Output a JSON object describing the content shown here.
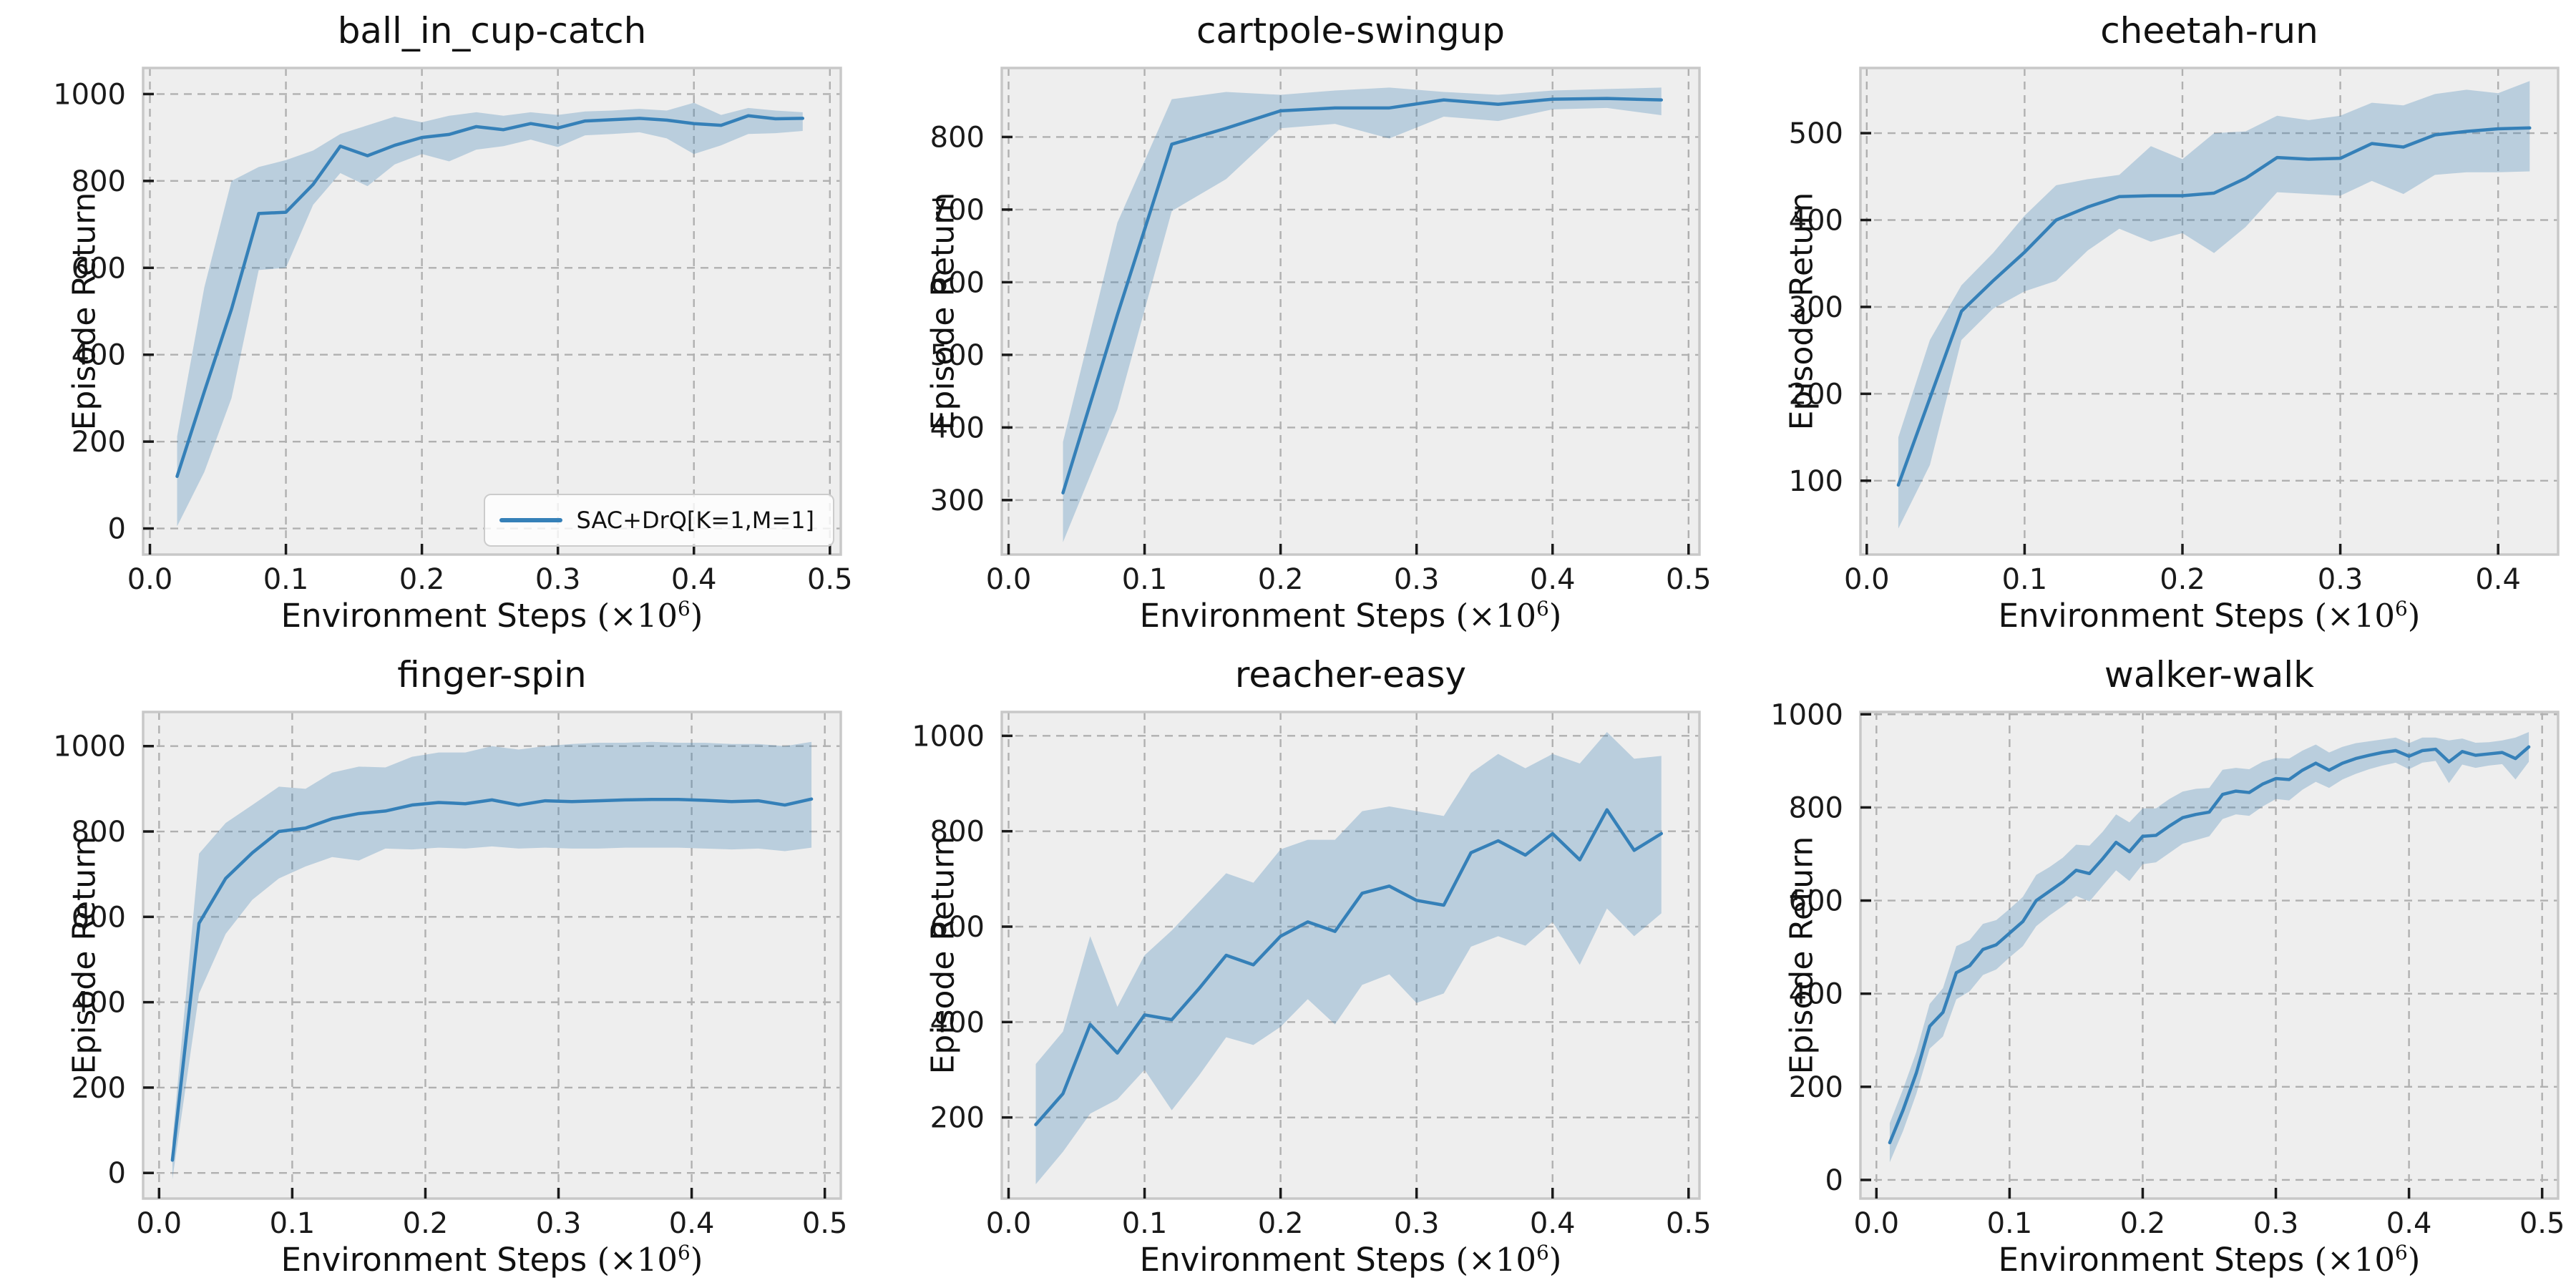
{
  "figure": {
    "background": "#ffffff",
    "axes_background": "#eeeeee",
    "grid_color": "#b0b0b0",
    "spine_color": "#c8c8c8",
    "tick_color": "#1a1a1a",
    "line_color": "#3580b8",
    "band_color": "rgba(53,126,180,0.28)",
    "xlabel": {
      "pre": "Environment Steps ",
      "open": "(",
      "times": "×10",
      "exp": "6",
      "close": ")"
    }
  },
  "legend": {
    "label": "SAC+DrQ[K=1,M=1]"
  },
  "chart_data": [
    {
      "type": "line",
      "title": "ball_in_cup-catch",
      "xlabel": "Environment Steps (×10⁶)",
      "ylabel": "Episode Return",
      "legend_visible": true,
      "grid": true,
      "xlim": [
        -0.005,
        0.508
      ],
      "ylim": [
        -60,
        1060
      ],
      "xticks": [
        0,
        0.1,
        0.2,
        0.3,
        0.4,
        0.5
      ],
      "xtick_labels": [
        "0.0",
        "0.1",
        "0.2",
        "0.3",
        "0.4",
        "0.5"
      ],
      "yticks": [
        0,
        200,
        400,
        600,
        800,
        1000
      ],
      "ytick_labels": [
        "0",
        "200",
        "400",
        "600",
        "800",
        "1000"
      ],
      "series": [
        {
          "name": "SAC+DrQ[K=1,M=1]",
          "x": [
            0.02,
            0.04,
            0.06,
            0.08,
            0.1,
            0.12,
            0.14,
            0.16,
            0.18,
            0.2,
            0.22,
            0.24,
            0.26,
            0.28,
            0.3,
            0.32,
            0.34,
            0.36,
            0.38,
            0.4,
            0.42,
            0.44,
            0.46,
            0.48
          ],
          "mean": [
            120,
            315,
            505,
            725,
            728,
            792,
            880,
            858,
            882,
            900,
            907,
            925,
            918,
            932,
            922,
            938,
            941,
            944,
            940,
            932,
            928,
            950,
            943,
            944
          ],
          "band_low": [
            5,
            130,
            300,
            595,
            600,
            745,
            818,
            788,
            838,
            862,
            845,
            872,
            880,
            895,
            878,
            905,
            908,
            912,
            898,
            862,
            882,
            908,
            910,
            915
          ],
          "band_high": [
            212,
            555,
            800,
            832,
            848,
            870,
            908,
            928,
            948,
            935,
            950,
            958,
            950,
            958,
            952,
            960,
            962,
            966,
            962,
            980,
            952,
            968,
            962,
            958
          ]
        }
      ]
    },
    {
      "type": "line",
      "title": "cartpole-swingup",
      "xlabel": "Environment Steps (×10⁶)",
      "ylabel": "Episode Return",
      "legend_visible": false,
      "grid": true,
      "xlim": [
        -0.005,
        0.508
      ],
      "ylim": [
        225,
        895
      ],
      "xticks": [
        0,
        0.1,
        0.2,
        0.3,
        0.4,
        0.5
      ],
      "xtick_labels": [
        "0.0",
        "0.1",
        "0.2",
        "0.3",
        "0.4",
        "0.5"
      ],
      "yticks": [
        300,
        400,
        500,
        600,
        700,
        800
      ],
      "ytick_labels": [
        "300",
        "400",
        "500",
        "600",
        "700",
        "800"
      ],
      "series": [
        {
          "name": "SAC+DrQ[K=1,M=1]",
          "x": [
            0.04,
            0.08,
            0.12,
            0.16,
            0.2,
            0.24,
            0.28,
            0.32,
            0.36,
            0.4,
            0.44,
            0.48
          ],
          "mean": [
            310,
            555,
            790,
            812,
            836,
            840,
            840,
            851,
            845,
            852,
            853,
            851
          ],
          "band_low": [
            242,
            425,
            698,
            742,
            812,
            818,
            798,
            828,
            822,
            838,
            840,
            830
          ],
          "band_high": [
            380,
            682,
            852,
            862,
            858,
            864,
            868,
            862,
            858,
            864,
            866,
            868
          ]
        }
      ]
    },
    {
      "type": "line",
      "title": "cheetah-run",
      "xlabel": "Environment Steps (×10⁶)",
      "ylabel": "Episode Return",
      "legend_visible": false,
      "grid": true,
      "xlim": [
        -0.004,
        0.438
      ],
      "ylim": [
        15,
        575
      ],
      "xticks": [
        0,
        0.1,
        0.2,
        0.3,
        0.4
      ],
      "xtick_labels": [
        "0.0",
        "0.1",
        "0.2",
        "0.3",
        "0.4"
      ],
      "yticks": [
        100,
        200,
        300,
        400,
        500
      ],
      "ytick_labels": [
        "100",
        "200",
        "300",
        "400",
        "500"
      ],
      "series": [
        {
          "name": "SAC+DrQ[K=1,M=1]",
          "x": [
            0.02,
            0.04,
            0.06,
            0.08,
            0.1,
            0.12,
            0.14,
            0.16,
            0.18,
            0.2,
            0.22,
            0.24,
            0.26,
            0.28,
            0.3,
            0.32,
            0.34,
            0.36,
            0.38,
            0.4,
            0.42
          ],
          "mean": [
            95,
            195,
            295,
            330,
            363,
            400,
            415,
            427,
            428,
            428,
            431,
            448,
            472,
            470,
            471,
            488,
            484,
            498,
            502,
            505,
            506
          ],
          "band_low": [
            45,
            118,
            262,
            298,
            318,
            330,
            365,
            390,
            375,
            385,
            362,
            392,
            432,
            430,
            428,
            445,
            430,
            452,
            455,
            455,
            456
          ],
          "band_high": [
            150,
            262,
            325,
            362,
            405,
            440,
            447,
            452,
            485,
            470,
            500,
            502,
            520,
            515,
            520,
            535,
            532,
            545,
            550,
            546,
            560
          ]
        }
      ]
    },
    {
      "type": "line",
      "title": "finger-spin",
      "xlabel": "Environment Steps (×10⁶)",
      "ylabel": "Episode Return",
      "legend_visible": false,
      "grid": true,
      "xlim": [
        -0.012,
        0.512
      ],
      "ylim": [
        -60,
        1080
      ],
      "xticks": [
        0,
        0.1,
        0.2,
        0.3,
        0.4,
        0.5
      ],
      "xtick_labels": [
        "0.0",
        "0.1",
        "0.2",
        "0.3",
        "0.4",
        "0.5"
      ],
      "yticks": [
        0,
        200,
        400,
        600,
        800,
        1000
      ],
      "ytick_labels": [
        "0",
        "200",
        "400",
        "600",
        "800",
        "1000"
      ],
      "series": [
        {
          "name": "SAC+DrQ[K=1,M=1]",
          "x": [
            0.01,
            0.03,
            0.05,
            0.07,
            0.09,
            0.11,
            0.13,
            0.15,
            0.17,
            0.19,
            0.21,
            0.23,
            0.25,
            0.27,
            0.29,
            0.31,
            0.33,
            0.35,
            0.37,
            0.39,
            0.41,
            0.43,
            0.45,
            0.47,
            0.49
          ],
          "mean": [
            30,
            585,
            690,
            750,
            800,
            808,
            830,
            842,
            848,
            862,
            868,
            865,
            874,
            862,
            872,
            870,
            872,
            874,
            875,
            875,
            873,
            870,
            872,
            862,
            876
          ],
          "band_low": [
            -15,
            420,
            560,
            640,
            690,
            718,
            740,
            732,
            760,
            758,
            762,
            760,
            765,
            760,
            762,
            760,
            760,
            762,
            762,
            762,
            760,
            758,
            760,
            754,
            762
          ],
          "band_high": [
            75,
            748,
            820,
            862,
            905,
            900,
            938,
            952,
            950,
            975,
            985,
            985,
            1000,
            992,
            1000,
            1005,
            1008,
            1008,
            1010,
            1008,
            1008,
            1005,
            1005,
            1000,
            1010
          ]
        }
      ]
    },
    {
      "type": "line",
      "title": "reacher-easy",
      "xlabel": "Environment Steps (×10⁶)",
      "ylabel": "Episode Return",
      "legend_visible": false,
      "grid": true,
      "xlim": [
        -0.005,
        0.508
      ],
      "ylim": [
        30,
        1050
      ],
      "xticks": [
        0,
        0.1,
        0.2,
        0.3,
        0.4,
        0.5
      ],
      "xtick_labels": [
        "0.0",
        "0.1",
        "0.2",
        "0.3",
        "0.4",
        "0.5"
      ],
      "yticks": [
        200,
        400,
        600,
        800,
        1000
      ],
      "ytick_labels": [
        "200",
        "400",
        "600",
        "800",
        "1000"
      ],
      "series": [
        {
          "name": "SAC+DrQ[K=1,M=1]",
          "x": [
            0.02,
            0.04,
            0.06,
            0.08,
            0.1,
            0.12,
            0.14,
            0.16,
            0.18,
            0.2,
            0.22,
            0.24,
            0.26,
            0.28,
            0.3,
            0.32,
            0.34,
            0.36,
            0.38,
            0.4,
            0.42,
            0.44,
            0.46,
            0.48
          ],
          "mean": [
            185,
            250,
            395,
            335,
            415,
            405,
            470,
            540,
            520,
            580,
            610,
            590,
            670,
            685,
            655,
            645,
            755,
            780,
            750,
            795,
            740,
            845,
            760,
            795
          ],
          "band_low": [
            60,
            128,
            208,
            238,
            300,
            215,
            288,
            368,
            352,
            390,
            448,
            395,
            478,
            500,
            440,
            460,
            558,
            580,
            560,
            610,
            520,
            638,
            580,
            628
          ],
          "band_high": [
            312,
            380,
            580,
            432,
            540,
            592,
            652,
            712,
            692,
            762,
            782,
            782,
            842,
            852,
            842,
            832,
            922,
            962,
            932,
            962,
            942,
            1008,
            952,
            958
          ]
        }
      ]
    },
    {
      "type": "line",
      "title": "walker-walk",
      "xlabel": "Environment Steps (×10⁶)",
      "ylabel": "Episode Return",
      "legend_visible": false,
      "grid": true,
      "xlim": [
        -0.012,
        0.512
      ],
      "ylim": [
        -40,
        1005
      ],
      "xticks": [
        0,
        0.1,
        0.2,
        0.3,
        0.4,
        0.5
      ],
      "xtick_labels": [
        "0.0",
        "0.1",
        "0.2",
        "0.3",
        "0.4",
        "0.5"
      ],
      "yticks": [
        0,
        200,
        400,
        600,
        800,
        1000
      ],
      "ytick_labels": [
        "0",
        "200",
        "400",
        "600",
        "800",
        "1000"
      ],
      "series": [
        {
          "name": "SAC+DrQ[K=1,M=1]",
          "x": [
            0.01,
            0.02,
            0.03,
            0.04,
            0.05,
            0.06,
            0.07,
            0.08,
            0.09,
            0.1,
            0.11,
            0.12,
            0.13,
            0.14,
            0.15,
            0.16,
            0.17,
            0.18,
            0.19,
            0.2,
            0.21,
            0.22,
            0.23,
            0.24,
            0.25,
            0.26,
            0.27,
            0.28,
            0.29,
            0.3,
            0.31,
            0.32,
            0.33,
            0.34,
            0.35,
            0.36,
            0.37,
            0.38,
            0.39,
            0.4,
            0.41,
            0.42,
            0.43,
            0.44,
            0.45,
            0.46,
            0.47,
            0.48,
            0.49
          ],
          "mean": [
            80,
            150,
            230,
            330,
            360,
            445,
            460,
            495,
            505,
            530,
            555,
            600,
            620,
            640,
            665,
            658,
            690,
            725,
            705,
            738,
            740,
            760,
            778,
            785,
            790,
            828,
            835,
            832,
            850,
            862,
            860,
            880,
            895,
            880,
            895,
            905,
            912,
            918,
            922,
            910,
            922,
            925,
            898,
            920,
            912,
            915,
            918,
            905,
            930
          ],
          "band_low": [
            38,
            105,
            185,
            282,
            308,
            388,
            405,
            440,
            452,
            478,
            502,
            545,
            568,
            588,
            610,
            598,
            632,
            665,
            642,
            678,
            682,
            702,
            722,
            730,
            738,
            775,
            785,
            782,
            802,
            818,
            815,
            838,
            855,
            842,
            860,
            872,
            882,
            890,
            896,
            882,
            896,
            900,
            852,
            892,
            885,
            890,
            893,
            860,
            898
          ],
          "band_high": [
            122,
            195,
            275,
            378,
            412,
            502,
            515,
            550,
            558,
            582,
            608,
            655,
            672,
            692,
            720,
            718,
            748,
            785,
            768,
            798,
            798,
            818,
            834,
            840,
            842,
            881,
            885,
            882,
            898,
            906,
            905,
            922,
            935,
            918,
            930,
            938,
            942,
            946,
            950,
            938,
            950,
            950,
            944,
            948,
            939,
            940,
            944,
            950,
            962
          ]
        }
      ]
    }
  ]
}
